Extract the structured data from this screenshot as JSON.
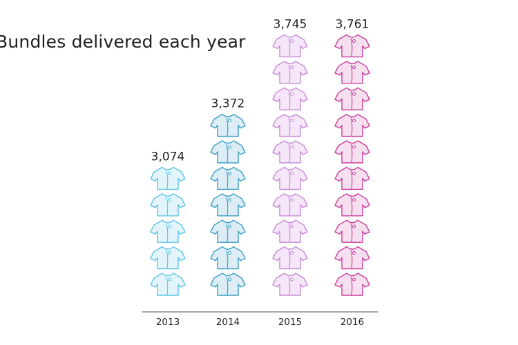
{
  "chart_data": {
    "type": "bar",
    "title": "Bundles delivered each year",
    "xlabel": "",
    "ylabel": "",
    "categories": [
      "2013",
      "2014",
      "2015",
      "2016"
    ],
    "values": [
      3074,
      3372,
      3745,
      3761
    ],
    "value_labels": [
      "3,074",
      "3,372",
      "3,745",
      "3,761"
    ],
    "icon_counts": [
      5,
      7,
      10,
      10
    ],
    "icon": "baby-shirt-icon",
    "series_colors": [
      {
        "stroke": "#5cc4e4",
        "fill": "#e3f5fc"
      },
      {
        "stroke": "#3a9ec4",
        "fill": "#dcedf5"
      },
      {
        "stroke": "#c58bd4",
        "fill": "#f6e6f9"
      },
      {
        "stroke": "#c83c9c",
        "fill": "#f6e0ef"
      }
    ],
    "axis_color": "#888888",
    "grid": false,
    "legend": "none"
  }
}
